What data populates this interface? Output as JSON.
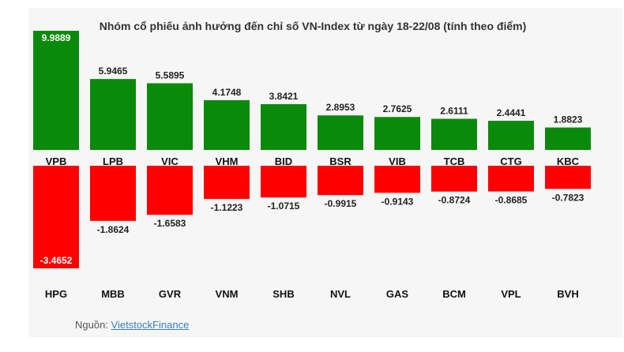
{
  "chart_data": {
    "type": "bar",
    "title": "Nhóm cổ phiếu ảnh hưởng đến chỉ số VN-Index từ ngày 18-22/08 (tính theo điểm)",
    "positive": {
      "categories": [
        "VPB",
        "LPB",
        "VIC",
        "VHM",
        "BID",
        "BSR",
        "VIB",
        "TCB",
        "CTG",
        "KBC"
      ],
      "values": [
        9.9889,
        5.9465,
        5.5895,
        4.1748,
        3.8421,
        2.8953,
        2.7625,
        2.6111,
        2.4441,
        1.8823
      ],
      "labels": [
        "9.9889",
        "5.9465",
        "5.5895",
        "4.1748",
        "3.8421",
        "2.8953",
        "2.7625",
        "2.6111",
        "2.4441",
        "1.8823"
      ]
    },
    "negative": {
      "categories": [
        "HPG",
        "MBB",
        "GVR",
        "VNM",
        "SHB",
        "NVL",
        "GAS",
        "BCM",
        "VPL",
        "BVH"
      ],
      "values": [
        -3.4652,
        -1.8624,
        -1.6583,
        -1.1223,
        -1.0715,
        -0.9915,
        -0.9143,
        -0.8724,
        -0.8685,
        -0.7823
      ],
      "labels": [
        "-3.4652",
        "-1.8624",
        "-1.6583",
        "-1.1223",
        "-1.0715",
        "-0.9915",
        "-0.9143",
        "-0.8724",
        "-0.8685",
        "-0.7823"
      ]
    },
    "colors": {
      "positive": "#0a8a0a",
      "negative": "#ff0000"
    }
  },
  "source": {
    "label": "Nguồn: ",
    "link_text": "VietstockFinance"
  }
}
